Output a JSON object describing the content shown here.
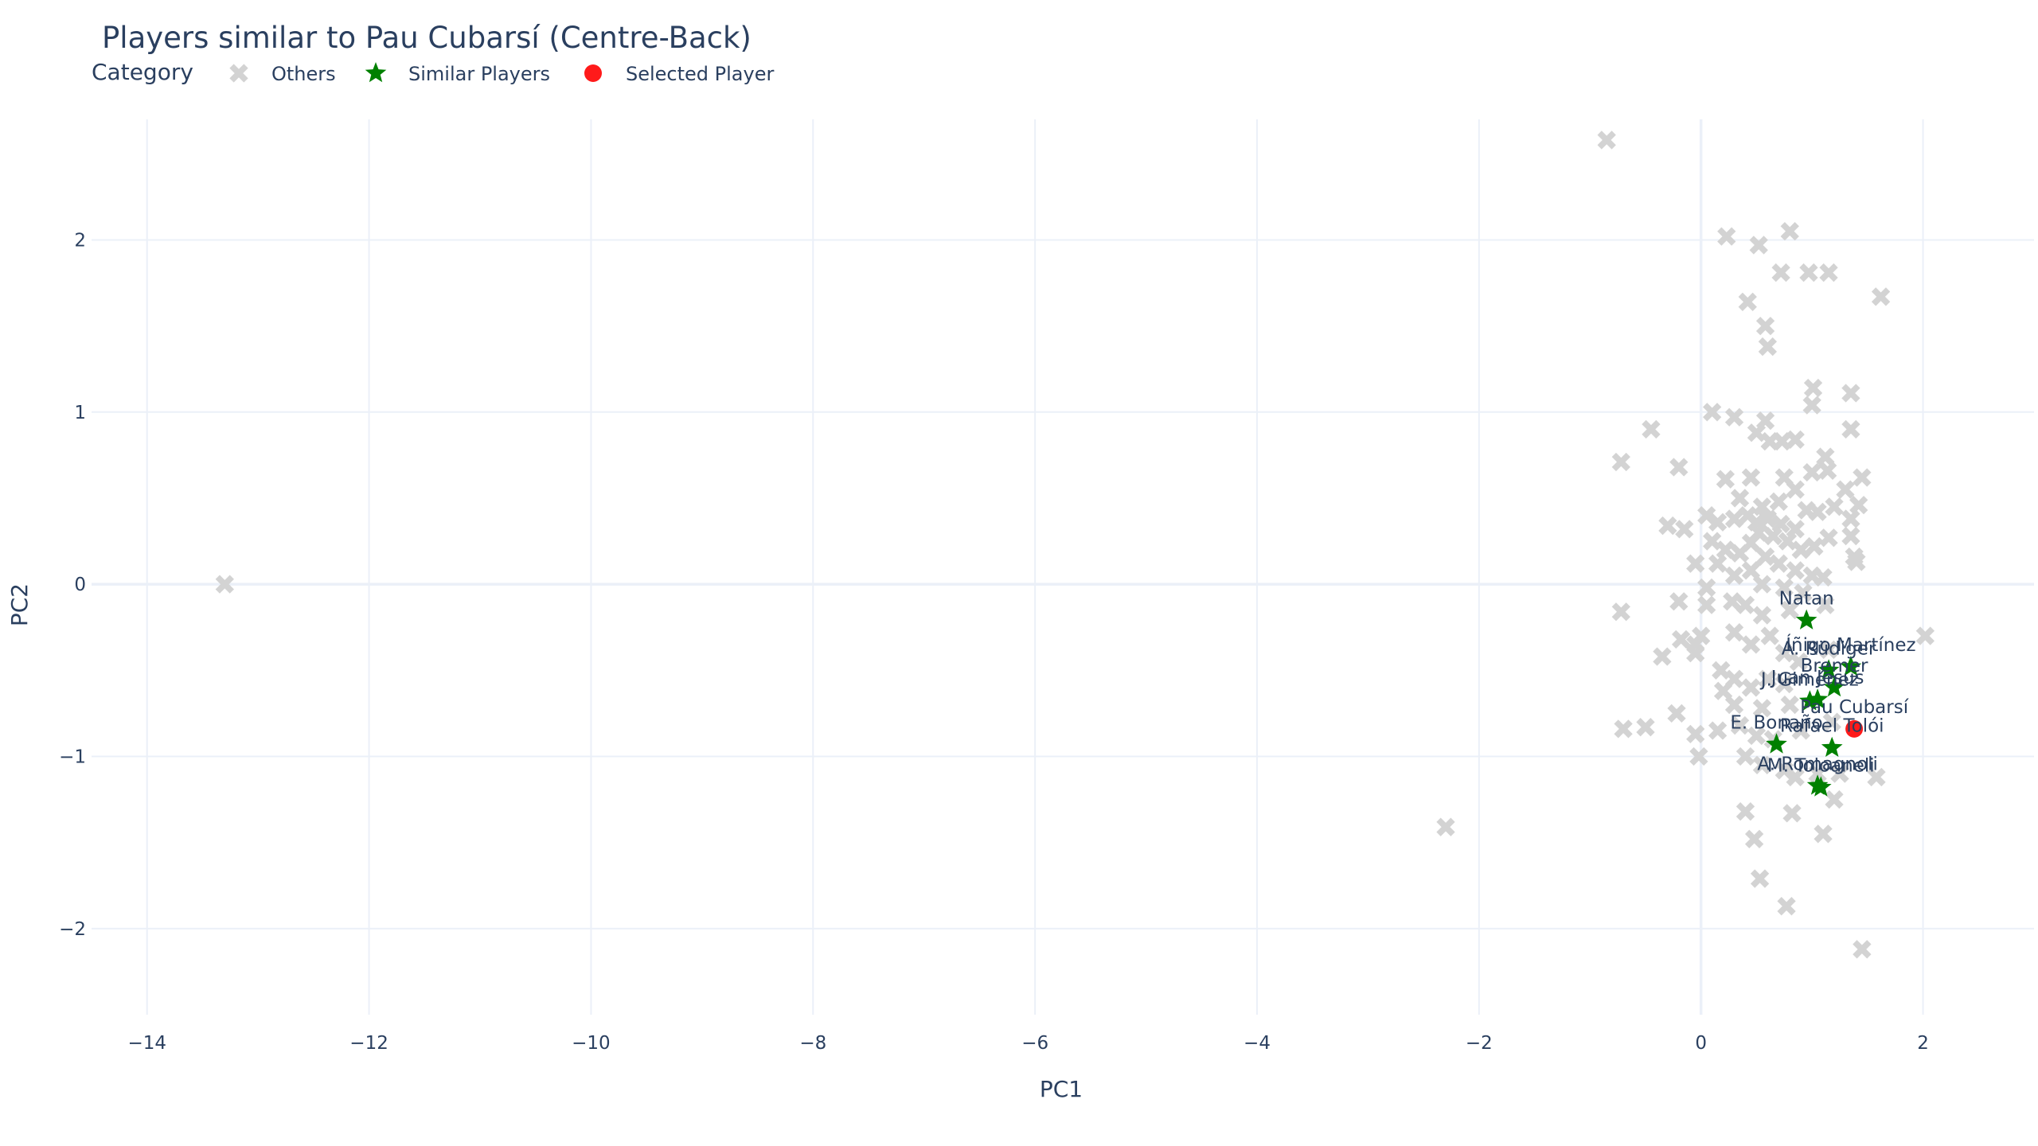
{
  "chart_data": {
    "type": "scatter",
    "title": "Players similar to Pau Cubarsí (Centre-Back)",
    "xlabel": "PC1",
    "ylabel": "PC2",
    "xlim": [
      -14.5,
      3
    ],
    "ylim": [
      -2.5,
      2.7
    ],
    "x_ticks": [
      -14,
      -12,
      -10,
      -8,
      -6,
      -4,
      -2,
      0,
      2
    ],
    "y_ticks": [
      -2,
      -1,
      0,
      1,
      2
    ],
    "grid": true,
    "legend": {
      "title": "Category",
      "placement": "top-left",
      "entries": [
        {
          "name": "Others",
          "marker": "x",
          "color": "#d3d3d3"
        },
        {
          "name": "Similar Players",
          "marker": "star",
          "color": "#008000"
        },
        {
          "name": "Selected Player",
          "marker": "circle",
          "color": "#ff1a1a"
        }
      ]
    },
    "series": [
      {
        "name": "Others",
        "marker": "x",
        "color": "#d3d3d3",
        "points": [
          [
            -13.3,
            0.0
          ],
          [
            -2.3,
            -1.41
          ],
          [
            -0.85,
            2.58
          ],
          [
            0.23,
            2.02
          ],
          [
            0.52,
            1.97
          ],
          [
            0.8,
            2.05
          ],
          [
            0.58,
            1.5
          ],
          [
            0.6,
            1.38
          ],
          [
            0.42,
            1.64
          ],
          [
            0.72,
            1.81
          ],
          [
            0.97,
            1.81
          ],
          [
            1.15,
            1.81
          ],
          [
            1.62,
            1.67
          ],
          [
            1.01,
            1.14
          ],
          [
            1.0,
            1.04
          ],
          [
            1.35,
            1.11
          ],
          [
            1.35,
            0.9
          ],
          [
            0.1,
            1.0
          ],
          [
            0.3,
            0.97
          ],
          [
            0.5,
            0.88
          ],
          [
            0.62,
            0.83
          ],
          [
            0.73,
            0.83
          ],
          [
            0.85,
            0.84
          ],
          [
            0.58,
            0.95
          ],
          [
            -0.45,
            0.9
          ],
          [
            -0.72,
            0.71
          ],
          [
            -0.2,
            0.68
          ],
          [
            1.12,
            0.74
          ],
          [
            1.14,
            0.66
          ],
          [
            1.0,
            0.65
          ],
          [
            0.22,
            0.61
          ],
          [
            0.45,
            0.62
          ],
          [
            0.75,
            0.62
          ],
          [
            0.85,
            0.55
          ],
          [
            1.3,
            0.55
          ],
          [
            1.45,
            0.62
          ],
          [
            0.35,
            0.5
          ],
          [
            0.55,
            0.45
          ],
          [
            0.7,
            0.48
          ],
          [
            0.95,
            0.43
          ],
          [
            1.05,
            0.42
          ],
          [
            1.2,
            0.45
          ],
          [
            1.42,
            0.46
          ],
          [
            1.35,
            0.38
          ],
          [
            0.05,
            0.4
          ],
          [
            0.15,
            0.36
          ],
          [
            0.3,
            0.38
          ],
          [
            0.42,
            0.4
          ],
          [
            0.5,
            0.36
          ],
          [
            0.6,
            0.38
          ],
          [
            0.72,
            0.35
          ],
          [
            0.85,
            0.32
          ],
          [
            0.65,
            0.28
          ],
          [
            0.52,
            0.3
          ],
          [
            0.78,
            0.25
          ],
          [
            0.9,
            0.2
          ],
          [
            1.02,
            0.22
          ],
          [
            1.15,
            0.27
          ],
          [
            1.35,
            0.28
          ],
          [
            -0.3,
            0.34
          ],
          [
            -0.15,
            0.32
          ],
          [
            0.1,
            0.25
          ],
          [
            0.22,
            0.2
          ],
          [
            0.35,
            0.18
          ],
          [
            0.45,
            0.24
          ],
          [
            0.58,
            0.16
          ],
          [
            0.7,
            0.12
          ],
          [
            0.85,
            0.08
          ],
          [
            1.0,
            0.05
          ],
          [
            1.1,
            0.04
          ],
          [
            1.38,
            0.16
          ],
          [
            1.4,
            0.13
          ],
          [
            -0.05,
            0.12
          ],
          [
            0.15,
            0.12
          ],
          [
            0.3,
            0.05
          ],
          [
            0.45,
            0.08
          ],
          [
            0.55,
            0.0
          ],
          [
            0.75,
            -0.02
          ],
          [
            0.92,
            -0.05
          ],
          [
            0.05,
            -0.02
          ],
          [
            0.05,
            -0.12
          ],
          [
            -0.72,
            -0.16
          ],
          [
            -0.2,
            -0.1
          ],
          [
            0.28,
            -0.1
          ],
          [
            0.4,
            -0.12
          ],
          [
            0.55,
            -0.18
          ],
          [
            0.8,
            -0.15
          ],
          [
            1.12,
            -0.12
          ],
          [
            0.0,
            -0.3
          ],
          [
            -0.05,
            -0.35
          ],
          [
            -0.18,
            -0.32
          ],
          [
            -0.05,
            -0.4
          ],
          [
            -0.35,
            -0.42
          ],
          [
            0.3,
            -0.28
          ],
          [
            0.45,
            -0.35
          ],
          [
            0.62,
            -0.3
          ],
          [
            0.75,
            -0.4
          ],
          [
            0.88,
            -0.45
          ],
          [
            1.15,
            -0.38
          ],
          [
            2.02,
            -0.3
          ],
          [
            0.18,
            -0.5
          ],
          [
            0.3,
            -0.55
          ],
          [
            0.45,
            -0.6
          ],
          [
            0.6,
            -0.55
          ],
          [
            0.75,
            -0.58
          ],
          [
            0.2,
            -0.62
          ],
          [
            0.3,
            -0.7
          ],
          [
            0.55,
            -0.72
          ],
          [
            0.8,
            -0.7
          ],
          [
            -0.22,
            -0.75
          ],
          [
            -0.5,
            -0.83
          ],
          [
            -0.7,
            -0.84
          ],
          [
            -0.05,
            -0.87
          ],
          [
            0.15,
            -0.85
          ],
          [
            0.35,
            -0.82
          ],
          [
            0.5,
            -0.88
          ],
          [
            0.65,
            -0.9
          ],
          [
            0.9,
            -0.85
          ],
          [
            1.18,
            -0.8
          ],
          [
            -0.02,
            -1.0
          ],
          [
            0.4,
            -1.0
          ],
          [
            0.55,
            -1.05
          ],
          [
            0.75,
            -1.08
          ],
          [
            0.85,
            -1.12
          ],
          [
            1.05,
            -1.1
          ],
          [
            1.25,
            -1.1
          ],
          [
            1.58,
            -1.12
          ],
          [
            1.2,
            -1.25
          ],
          [
            0.4,
            -1.32
          ],
          [
            0.82,
            -1.33
          ],
          [
            0.48,
            -1.48
          ],
          [
            1.1,
            -1.45
          ],
          [
            0.53,
            -1.71
          ],
          [
            0.77,
            -1.87
          ],
          [
            1.45,
            -2.12
          ]
        ]
      },
      {
        "name": "Similar Players",
        "marker": "star",
        "color": "#008000",
        "points": [
          {
            "label": "Natan",
            "x": 0.95,
            "y": -0.21
          },
          {
            "label": "Íñigo Martínez",
            "x": 1.35,
            "y": -0.48
          },
          {
            "label": "A. Rüdiger",
            "x": 1.15,
            "y": -0.5
          },
          {
            "label": "Bremer",
            "x": 1.2,
            "y": -0.6
          },
          {
            "label": "Juan Jesus",
            "x": 1.05,
            "y": -0.67
          },
          {
            "label": "J. Giménez",
            "x": 0.98,
            "y": -0.68
          },
          {
            "label": "Rafael Tolói",
            "x": 1.18,
            "y": -0.95
          },
          {
            "label": "E. Bonaño",
            "x": 0.68,
            "y": -0.93
          },
          {
            "label": "A. Romagnoli",
            "x": 1.05,
            "y": -1.17
          },
          {
            "label": "M. Toloaneli",
            "x": 1.08,
            "y": -1.18
          }
        ]
      },
      {
        "name": "Selected Player",
        "marker": "circle",
        "color": "#ff1a1a",
        "points": [
          {
            "label": "Pau Cubarsí",
            "x": 1.38,
            "y": -0.84
          }
        ]
      }
    ]
  }
}
